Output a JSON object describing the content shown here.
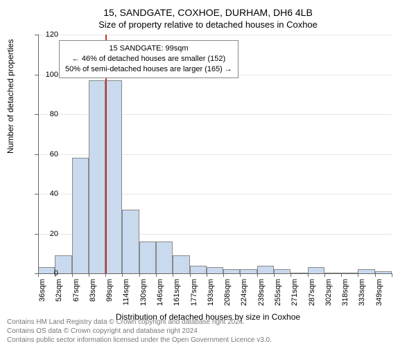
{
  "title_main": "15, SANDGATE, COXHOE, DURHAM, DH6 4LB",
  "title_sub": "Size of property relative to detached houses in Coxhoe",
  "y_axis_label": "Number of detached properties",
  "x_axis_label": "Distribution of detached houses by size in Coxhoe",
  "footer_line1": "Contains HM Land Registry data © Crown copyright and database right 2024.",
  "footer_line2": "Contains OS data © Crown copyright and database right 2024",
  "footer_line3": "Contains public sector information licensed under the Open Government Licence v3.0.",
  "info_box": {
    "line1": "15 SANDGATE: 99sqm",
    "line2": "← 46% of detached houses are smaller (152)",
    "line3": "50% of semi-detached houses are larger (165) →"
  },
  "chart": {
    "type": "histogram",
    "y_ticks": [
      0,
      20,
      40,
      60,
      80,
      100,
      120
    ],
    "ylim": [
      0,
      120
    ],
    "x_tick_labels": [
      "36sqm",
      "52sqm",
      "67sqm",
      "83sqm",
      "99sqm",
      "114sqm",
      "130sqm",
      "146sqm",
      "161sqm",
      "177sqm",
      "193sqm",
      "208sqm",
      "224sqm",
      "239sqm",
      "255sqm",
      "271sqm",
      "287sqm",
      "302sqm",
      "318sqm",
      "333sqm",
      "349sqm"
    ],
    "bar_values": [
      3,
      9,
      58,
      97,
      97,
      32,
      16,
      16,
      9,
      4,
      3,
      2,
      2,
      4,
      2,
      0,
      3,
      0,
      0,
      2,
      1
    ],
    "bar_fill_color": "#c9d9ee",
    "bar_stroke_color": "#888888",
    "background_color": "#ffffff",
    "grid_color": "#e5e5e5",
    "axis_color": "#666666",
    "marker_color": "#c0392b",
    "marker_bar_index": 4,
    "label_fontsize": 12,
    "tick_fontsize": 11,
    "title_fontsize": 14
  }
}
